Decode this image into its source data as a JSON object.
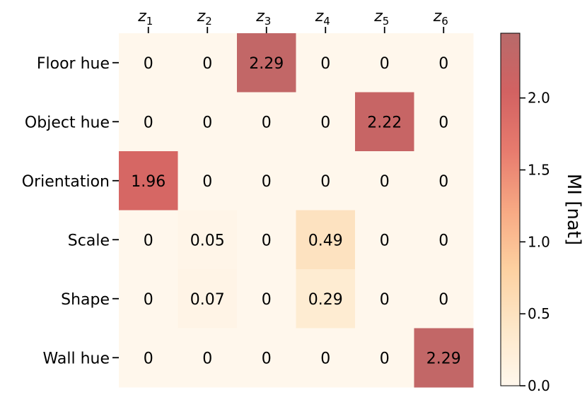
{
  "chart_data": {
    "type": "heatmap",
    "x_labels": [
      {
        "base": "z",
        "sub": "1"
      },
      {
        "base": "z",
        "sub": "2"
      },
      {
        "base": "z",
        "sub": "3"
      },
      {
        "base": "z",
        "sub": "4"
      },
      {
        "base": "z",
        "sub": "5"
      },
      {
        "base": "z",
        "sub": "6"
      }
    ],
    "y_labels": [
      "Floor hue",
      "Object hue",
      "Orientation",
      "Scale",
      "Shape",
      "Wall hue"
    ],
    "values": [
      [
        0,
        0,
        2.29,
        0,
        0,
        0
      ],
      [
        0,
        0,
        0,
        0,
        2.22,
        0
      ],
      [
        1.96,
        0,
        0,
        0,
        0,
        0
      ],
      [
        0,
        0.05,
        0,
        0.49,
        0,
        0
      ],
      [
        0,
        0.07,
        0,
        0.29,
        0,
        0
      ],
      [
        0,
        0,
        0,
        0,
        0,
        2.29
      ]
    ],
    "cell_labels": [
      [
        "0",
        "0",
        "2.29",
        "0",
        "0",
        "0"
      ],
      [
        "0",
        "0",
        "0",
        "0",
        "2.22",
        "0"
      ],
      [
        "1.96",
        "0",
        "0",
        "0",
        "0",
        "0"
      ],
      [
        "0",
        "0.05",
        "0",
        "0.49",
        "0",
        "0"
      ],
      [
        "0",
        "0.07",
        "0",
        "0.29",
        "0",
        "0"
      ],
      [
        "0",
        "0",
        "0",
        "0",
        "0",
        "2.29"
      ]
    ],
    "colorbar": {
      "label": "MI [nat]",
      "range": [
        0,
        2.45
      ],
      "ticks": [
        0.0,
        0.5,
        1.0,
        1.5,
        2.0
      ],
      "tick_labels": [
        "0.0",
        "0.5",
        "1.0",
        "1.5",
        "2.0"
      ],
      "colormap": [
        "#fff7ec",
        "#fde7c8",
        "#fdd0a0",
        "#f7a883",
        "#e77b6e",
        "#d26262",
        "#b86a6a"
      ]
    },
    "x_axis_position": "top",
    "grid": false
  }
}
